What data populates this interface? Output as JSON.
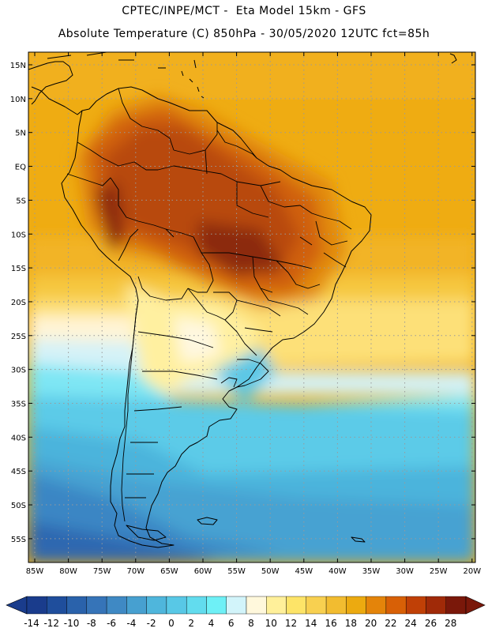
{
  "title": {
    "line1": "CPTEC/INPE/MCT -  Eta Model 15km - GFS",
    "line2": "Absolute Temperature (C) 850hPa - 30/05/2020 12UTC fct=85h"
  },
  "map": {
    "lat_labels": [
      "15N",
      "10N",
      "5N",
      "EQ",
      "5S",
      "10S",
      "15S",
      "20S",
      "25S",
      "30S",
      "35S",
      "40S",
      "45S",
      "50S",
      "55S"
    ],
    "lon_labels": [
      "85W",
      "80W",
      "75W",
      "70W",
      "65W",
      "60W",
      "55W",
      "50W",
      "45W",
      "40W",
      "35W",
      "30W",
      "25W",
      "20W"
    ],
    "ocean_color": "#58c8e6",
    "land_outline_color": "#000000"
  },
  "colorbar": {
    "labels": [
      "-14",
      "-12",
      "-10",
      "-8",
      "-6",
      "-4",
      "-2",
      "0",
      "2",
      "4",
      "6",
      "8",
      "10",
      "12",
      "14",
      "16",
      "18",
      "20",
      "22",
      "24",
      "26",
      "28"
    ],
    "colors": [
      "#1a3c8c",
      "#1f4e9c",
      "#2a62ab",
      "#3674b8",
      "#3f89c4",
      "#47a0d0",
      "#4fb6dc",
      "#58c8e6",
      "#62dcee",
      "#6ef0f6",
      "#d2f4fa",
      "#fff8dc",
      "#fff09a",
      "#fde468",
      "#f8d050",
      "#f2bc30",
      "#ecaa10",
      "#e4840a",
      "#d86006",
      "#c04006",
      "#a02a08",
      "#7a180a"
    ]
  }
}
